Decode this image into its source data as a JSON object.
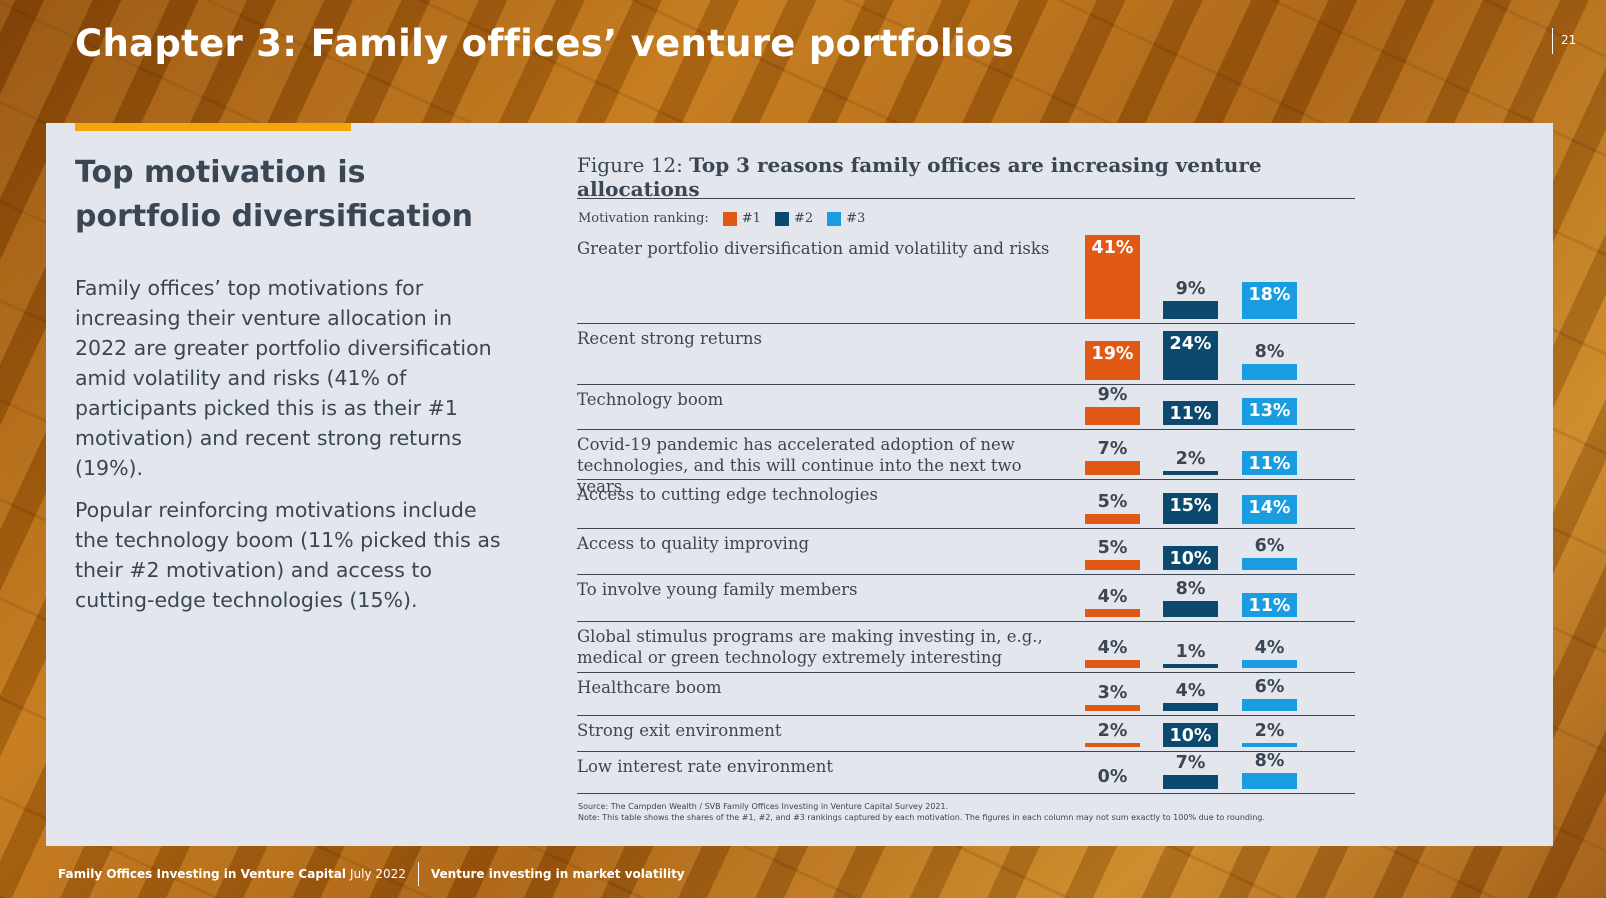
{
  "page": {
    "title": "Chapter 3: Family offices’ venture portfolios",
    "page_number": "21"
  },
  "left": {
    "heading": "Top motivation is portfolio diversification",
    "paragraphs": [
      "Family offices’ top motivations for increasing their venture allocation in 2022 are greater portfolio diversification amid volatility and risks (41% of participants picked this is as their #1 motivation) and recent strong returns (19%).",
      "Popular reinforcing motivations include the technology boom (11% picked this as their #2 motivation) and access to cutting-edge technologies (15%)."
    ]
  },
  "figure": {
    "label": "Figure 12:",
    "title": "Top 3 reasons family offices are increasing venture allocations",
    "legend_label": "Motivation ranking:",
    "source": "Source: The Campden Wealth / SVB Family Offices Investing in Venture Capital Survey 2021.",
    "note": "Note: This table shows the shares of the #1, #2, and #3 rankings captured by each motivation. The figures in each column may not sum exactly to 100% due to rounding."
  },
  "chart_data": {
    "type": "bar",
    "title": "Top 3 reasons family offices are increasing venture allocations",
    "legend_title": "Motivation ranking:",
    "unit": "%",
    "categories": [
      "Greater portfolio diversification amid volatility and risks",
      "Recent strong returns",
      "Technology boom",
      "Covid-19 pandemic has accelerated adoption of new technologies, and this will continue into the next two years",
      "Access to cutting edge technologies",
      "Access to quality improving",
      "To involve young family members",
      "Global stimulus programs are making investing in, e.g., medical or green technology extremely interesting",
      "Healthcare boom",
      "Strong exit environment",
      "Low interest rate environment"
    ],
    "series": [
      {
        "name": "#1",
        "color": "#e05a16",
        "values": [
          41,
          19,
          9,
          7,
          5,
          5,
          4,
          4,
          3,
          2,
          0
        ]
      },
      {
        "name": "#2",
        "color": "#0b4a6e",
        "values": [
          9,
          24,
          11,
          2,
          15,
          10,
          8,
          1,
          4,
          10,
          7
        ]
      },
      {
        "name": "#3",
        "color": "#1a9de0",
        "values": [
          18,
          8,
          13,
          11,
          14,
          6,
          11,
          4,
          6,
          2,
          8
        ]
      }
    ]
  },
  "footer": {
    "publication": "Family Offices Investing in Venture Capital",
    "date": "July 2022",
    "section": "Venture investing in market volatility"
  }
}
